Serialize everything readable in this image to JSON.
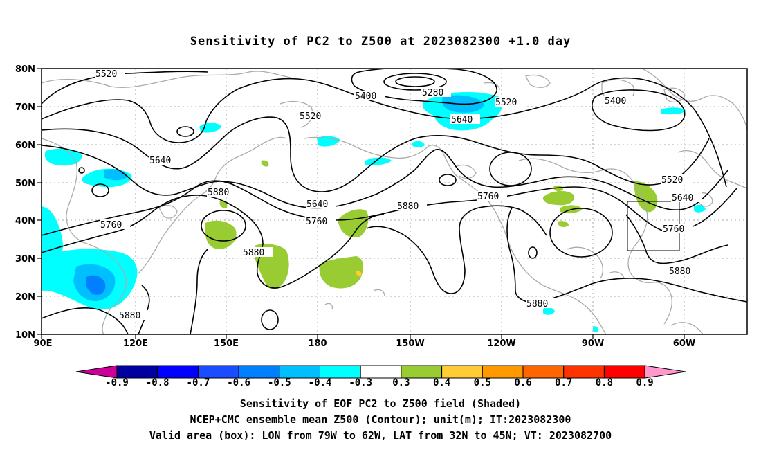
{
  "title": "Sensitivity of PC2 to Z500 at 2023082300 +1.0 day",
  "map": {
    "lat_labels": [
      "80N",
      "70N",
      "60N",
      "50N",
      "40N",
      "30N",
      "20N",
      "10N"
    ],
    "lon_labels": [
      "90E",
      "120E",
      "150E",
      "180",
      "150W",
      "120W",
      "90W",
      "60W"
    ],
    "contour_labels": [
      {
        "text": "5520"
      },
      {
        "text": "5400"
      },
      {
        "text": "5280"
      },
      {
        "text": "5520"
      },
      {
        "text": "5400"
      },
      {
        "text": "5520"
      },
      {
        "text": "5640"
      },
      {
        "text": "5640"
      },
      {
        "text": "5880"
      },
      {
        "text": "5640"
      },
      {
        "text": "5760"
      },
      {
        "text": "5880"
      },
      {
        "text": "5760"
      },
      {
        "text": "5520"
      },
      {
        "text": "5640"
      },
      {
        "text": "5760"
      },
      {
        "text": "5760"
      },
      {
        "text": "5880"
      },
      {
        "text": "5880"
      },
      {
        "text": "5880"
      },
      {
        "text": "5880"
      }
    ],
    "valid_box": {
      "lon_range": [
        "79W",
        "62W"
      ],
      "lat_range": [
        "32N",
        "45N"
      ]
    }
  },
  "colorbar": {
    "labels": [
      "-0.9",
      "-0.8",
      "-0.7",
      "-0.6",
      "-0.5",
      "-0.4",
      "-0.3",
      "0.3",
      "0.4",
      "0.5",
      "0.6",
      "0.7",
      "0.8",
      "0.9"
    ],
    "colors": [
      "#0000a0",
      "#0000ff",
      "#1a4dff",
      "#0080ff",
      "#00bfff",
      "#00ffff",
      "#ffffff",
      "#99cc33",
      "#ffcc33",
      "#ff9900",
      "#ff6600",
      "#ff3300",
      "#ff0000"
    ],
    "left_arrow_color": "#cc0099",
    "right_arrow_color": "#ff99cc"
  },
  "captions": {
    "line1": "Sensitivity of EOF PC2 to Z500 field (Shaded)",
    "line2": "NCEP+CMC ensemble mean Z500 (Contour); unit(m); IT:2023082300",
    "line3": "Valid area (box): LON from 79W to 62W, LAT from 32N to 45N; VT: 2023082700"
  }
}
